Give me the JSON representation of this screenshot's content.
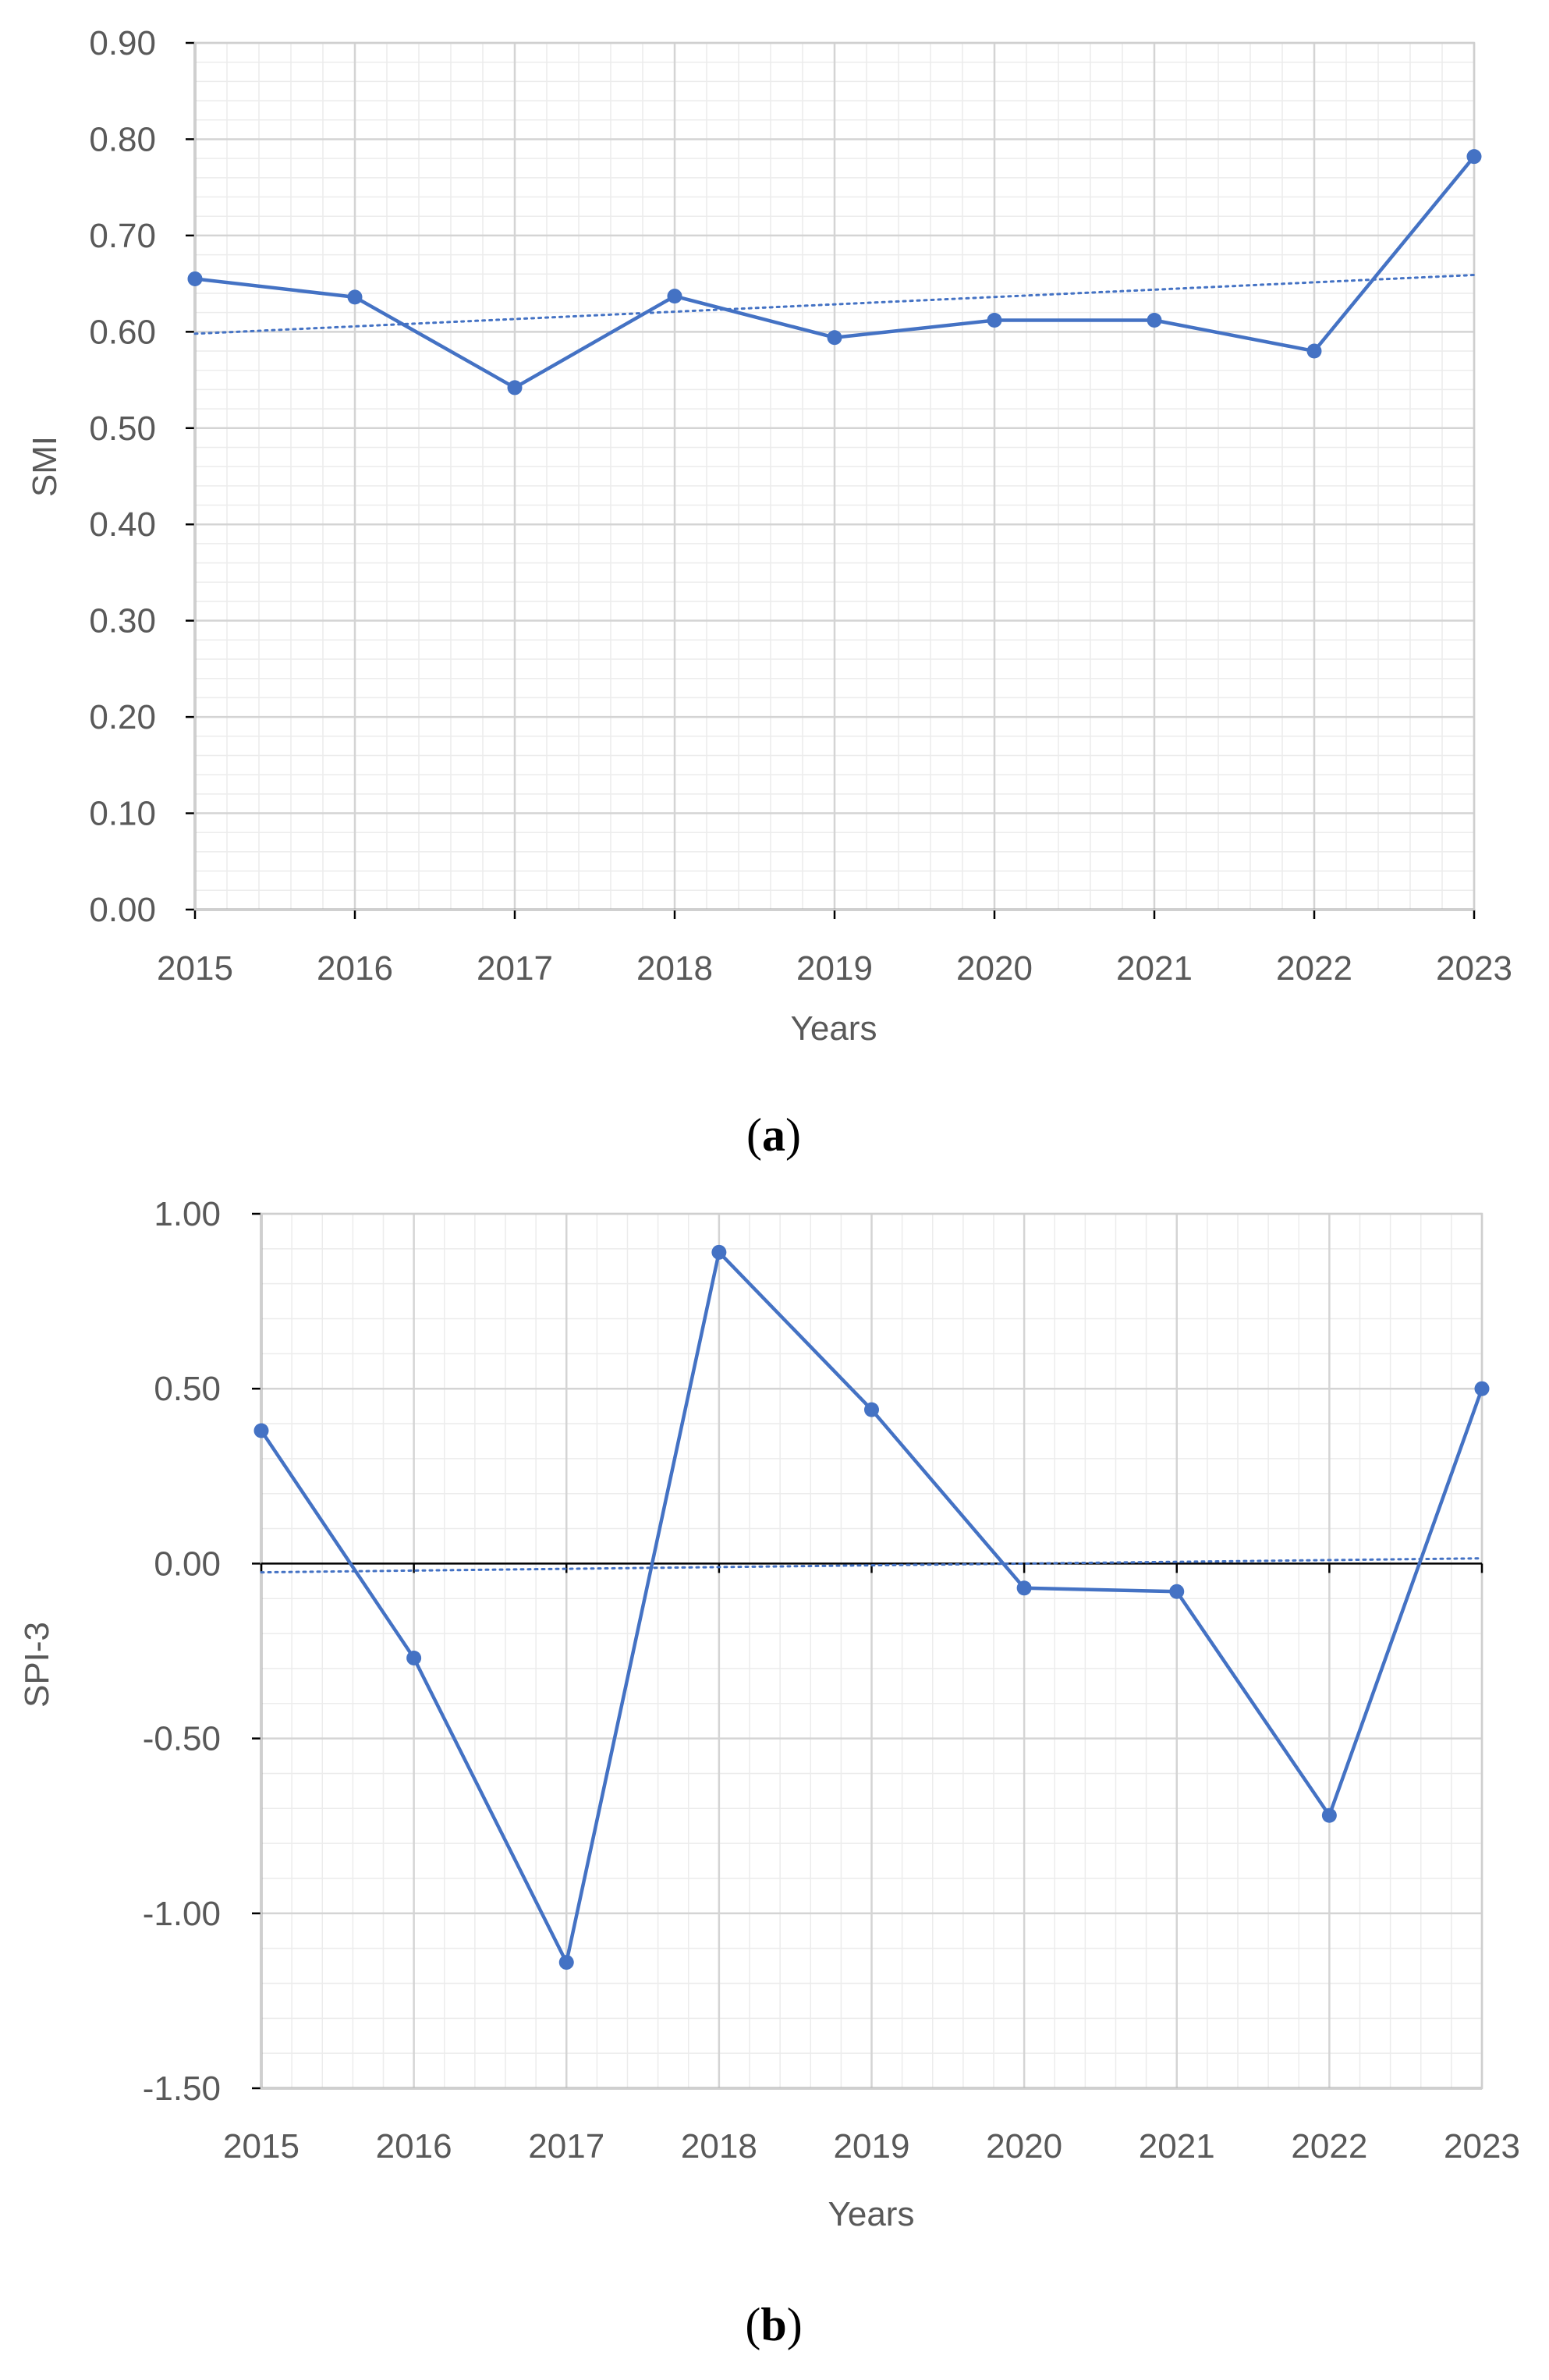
{
  "chart_data": [
    {
      "type": "line",
      "caption": "(a)",
      "caption_letter": "a",
      "xlabel": "Years",
      "ylabel": "SMI",
      "x": [
        "2015",
        "2016",
        "2017",
        "2018",
        "2019",
        "2020",
        "2021",
        "2022",
        "2023"
      ],
      "series": [
        {
          "values": [
            0.655,
            0.636,
            0.542,
            0.637,
            0.594,
            0.612,
            0.612,
            0.58,
            0.782
          ]
        }
      ],
      "trendline": {
        "style": "dotted",
        "start": 0.598,
        "end": 0.659
      },
      "ylim": [
        0.0,
        0.9
      ],
      "yticks": [
        "0.00",
        "0.10",
        "0.20",
        "0.30",
        "0.40",
        "0.50",
        "0.60",
        "0.70",
        "0.80",
        "0.90"
      ],
      "grid": true,
      "line_color": "#4472C4"
    },
    {
      "type": "line",
      "caption": "(b)",
      "caption_letter": "b",
      "xlabel": "Years",
      "ylabel": "SPI-3",
      "x": [
        "2015",
        "2016",
        "2017",
        "2018",
        "2019",
        "2020",
        "2021",
        "2022",
        "2023"
      ],
      "series": [
        {
          "values": [
            0.38,
            -0.27,
            -1.14,
            0.89,
            0.44,
            -0.07,
            -0.08,
            -0.72,
            0.5
          ]
        }
      ],
      "trendline": {
        "style": "dotted",
        "start": -0.025,
        "end": 0.015
      },
      "ylim": [
        -1.5,
        1.0
      ],
      "yticks": [
        "-1.50",
        "-1.00",
        "-0.50",
        "0.00",
        "0.50",
        "1.00"
      ],
      "zero_line": true,
      "grid": true,
      "line_color": "#4472C4"
    }
  ]
}
